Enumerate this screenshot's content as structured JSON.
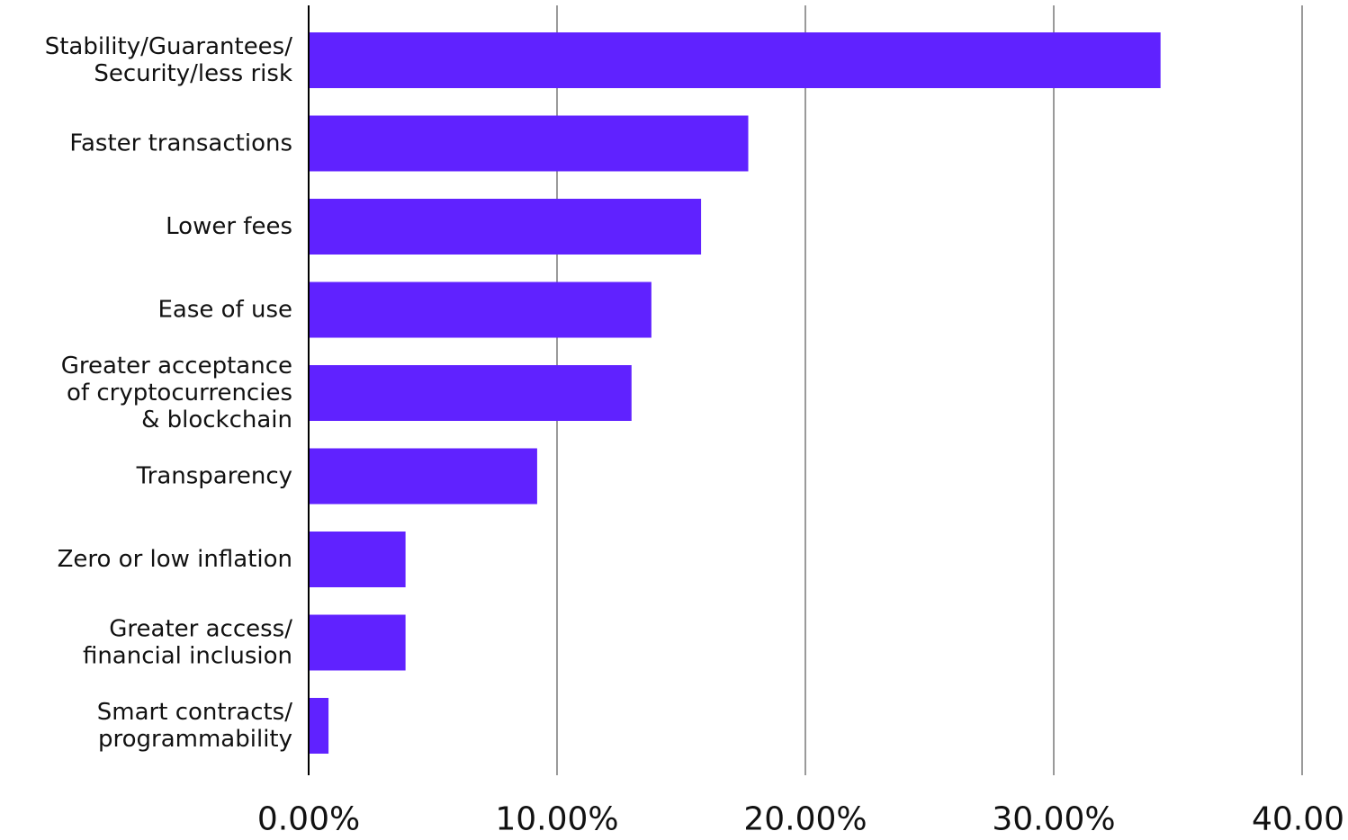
{
  "chart_data": {
    "type": "bar",
    "orientation": "horizontal",
    "categories": [
      [
        "Stability/Guarantees/",
        "Security/less risk"
      ],
      [
        "Faster transactions"
      ],
      [
        "Lower fees"
      ],
      [
        "Ease of use"
      ],
      [
        "Greater acceptance",
        "of cryptocurrencies",
        "& blockchain"
      ],
      [
        "Transparency"
      ],
      [
        "Zero or low inflation"
      ],
      [
        "Greater access/",
        "financial inclusion"
      ],
      [
        "Smart contracts/",
        "programmability"
      ]
    ],
    "values": [
      34.3,
      17.7,
      15.8,
      13.8,
      13.0,
      9.2,
      3.9,
      3.9,
      0.8
    ],
    "value_unit": "%",
    "xlim": [
      0,
      40
    ],
    "xticks": [
      0,
      10,
      20,
      30,
      40
    ],
    "xtick_labels": [
      "0.00%",
      "10.00%",
      "20.00%",
      "30.00%",
      "40.00"
    ],
    "grid": "vertical",
    "bar_color": "#6022FF",
    "grid_color": "#9a9a9a",
    "axis_color": "#000000",
    "title": "",
    "xlabel": "",
    "ylabel": ""
  }
}
